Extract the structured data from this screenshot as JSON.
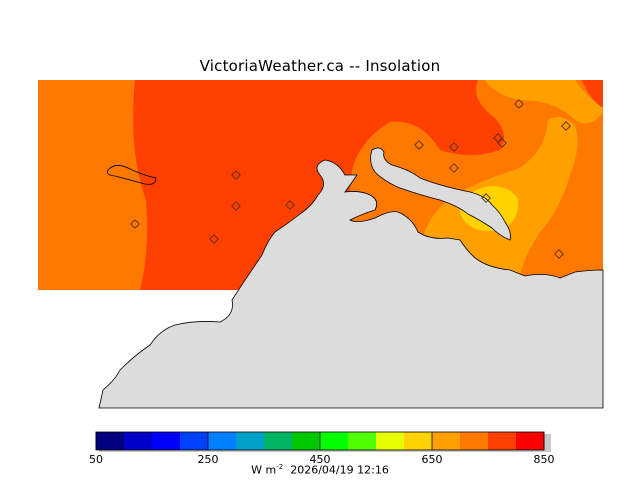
{
  "title": "VictoriaWeather.ca  --  Insolation",
  "units_base": "W m",
  "units_exp": "-2",
  "timestamp": "2026/04/19 12:16",
  "colorbar": {
    "ticks": [
      "50",
      "250",
      "450",
      "650",
      "850"
    ],
    "colors": [
      "#000080",
      "#0000c8",
      "#0000ff",
      "#0040ff",
      "#0080ff",
      "#00a0c8",
      "#00b464",
      "#00c800",
      "#00ff00",
      "#50ff00",
      "#e6ff00",
      "#ffd200",
      "#ffa000",
      "#ff7800",
      "#ff4000",
      "#ff0000"
    ]
  },
  "map": {
    "land_color": "#dcdcdc",
    "insolation_colors": {
      "650-700": "#ffa000",
      "700-750": "#ff7800",
      "750-800": "#ff4000",
      "600-650": "#ffd200"
    },
    "station_marker": "diamond"
  }
}
